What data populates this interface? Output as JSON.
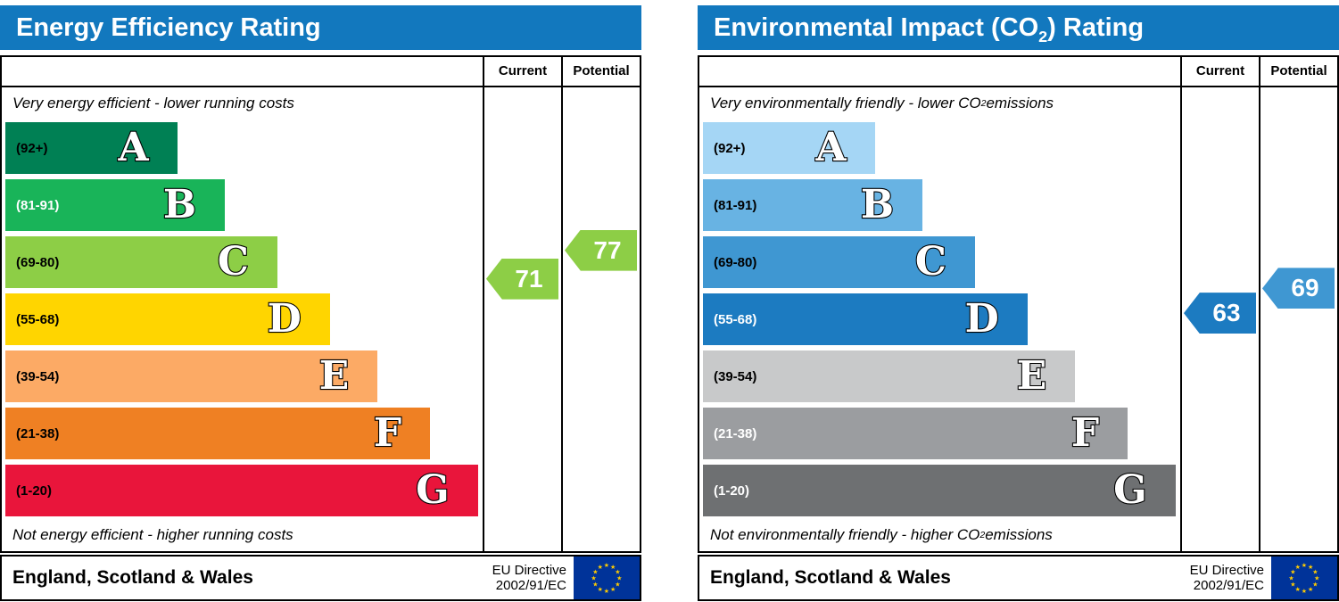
{
  "colors": {
    "title_bar_bg": "#1278be",
    "border": "#000000",
    "eu_flag_bg": "#003399",
    "eu_flag_stars": "#ffcc00",
    "arrow_text": "#ffffff"
  },
  "chart_data": [
    {
      "type": "bar",
      "title": "Energy Efficiency Rating",
      "title_parts": {
        "pre": "Energy Efficiency Rating",
        "sub": "",
        "post": ""
      },
      "columns": {
        "current": "Current",
        "potential": "Potential"
      },
      "top_note_parts": {
        "pre": "Very energy efficient - lower running costs",
        "sub": "",
        "post": ""
      },
      "bottom_note_parts": {
        "pre": "Not energy efficient - higher running costs",
        "sub": "",
        "post": ""
      },
      "bands": [
        {
          "letter": "A",
          "range_label": "(92+)",
          "min": 92,
          "max": 100,
          "color": "#008054",
          "label_color": "#000000",
          "width_pct": 36
        },
        {
          "letter": "B",
          "range_label": "(81-91)",
          "min": 81,
          "max": 91,
          "color": "#19b459",
          "label_color": "#ffffff",
          "width_pct": 46
        },
        {
          "letter": "C",
          "range_label": "(69-80)",
          "min": 69,
          "max": 80,
          "color": "#8dce46",
          "label_color": "#000000",
          "width_pct": 57
        },
        {
          "letter": "D",
          "range_label": "(55-68)",
          "min": 55,
          "max": 68,
          "color": "#ffd500",
          "label_color": "#000000",
          "width_pct": 68
        },
        {
          "letter": "E",
          "range_label": "(39-54)",
          "min": 39,
          "max": 54,
          "color": "#fcaa65",
          "label_color": "#000000",
          "width_pct": 78
        },
        {
          "letter": "F",
          "range_label": "(21-38)",
          "min": 21,
          "max": 38,
          "color": "#ef8023",
          "label_color": "#000000",
          "width_pct": 89
        },
        {
          "letter": "G",
          "range_label": "(1-20)",
          "min": 1,
          "max": 20,
          "color": "#e9153b",
          "label_color": "#000000",
          "width_pct": 99
        }
      ],
      "current": {
        "value": 71,
        "band": "C",
        "color": "#8dce46"
      },
      "potential": {
        "value": 77,
        "band": "C",
        "color": "#8dce46"
      },
      "footer": {
        "region": "England, Scotland & Wales",
        "directive_line1": "EU Directive",
        "directive_line2": "2002/91/EC"
      }
    },
    {
      "type": "bar",
      "title": "Environmental Impact (CO2) Rating",
      "title_parts": {
        "pre": "Environmental Impact (CO",
        "sub": "2",
        "post": ") Rating"
      },
      "columns": {
        "current": "Current",
        "potential": "Potential"
      },
      "top_note_parts": {
        "pre": "Very environmentally friendly - lower CO",
        "sub": "2",
        "post": " emissions"
      },
      "bottom_note_parts": {
        "pre": "Not environmentally friendly - higher CO",
        "sub": "2",
        "post": " emissions"
      },
      "bands": [
        {
          "letter": "A",
          "range_label": "(92+)",
          "min": 92,
          "max": 100,
          "color": "#a5d6f5",
          "label_color": "#000000",
          "width_pct": 36
        },
        {
          "letter": "B",
          "range_label": "(81-91)",
          "min": 81,
          "max": 91,
          "color": "#68b3e3",
          "label_color": "#000000",
          "width_pct": 46
        },
        {
          "letter": "C",
          "range_label": "(69-80)",
          "min": 69,
          "max": 80,
          "color": "#3f97d2",
          "label_color": "#000000",
          "width_pct": 57
        },
        {
          "letter": "D",
          "range_label": "(55-68)",
          "min": 55,
          "max": 68,
          "color": "#1c7bc1",
          "label_color": "#ffffff",
          "width_pct": 68
        },
        {
          "letter": "E",
          "range_label": "(39-54)",
          "min": 39,
          "max": 54,
          "color": "#c8c9ca",
          "label_color": "#000000",
          "width_pct": 78
        },
        {
          "letter": "F",
          "range_label": "(21-38)",
          "min": 21,
          "max": 38,
          "color": "#9b9da0",
          "label_color": "#ffffff",
          "width_pct": 89
        },
        {
          "letter": "G",
          "range_label": "(1-20)",
          "min": 1,
          "max": 20,
          "color": "#6e7072",
          "label_color": "#ffffff",
          "width_pct": 99
        }
      ],
      "current": {
        "value": 63,
        "band": "D",
        "color": "#1c7bc1"
      },
      "potential": {
        "value": 69,
        "band": "C",
        "color": "#3f97d2"
      },
      "footer": {
        "region": "England, Scotland & Wales",
        "directive_line1": "EU Directive",
        "directive_line2": "2002/91/EC"
      }
    }
  ]
}
